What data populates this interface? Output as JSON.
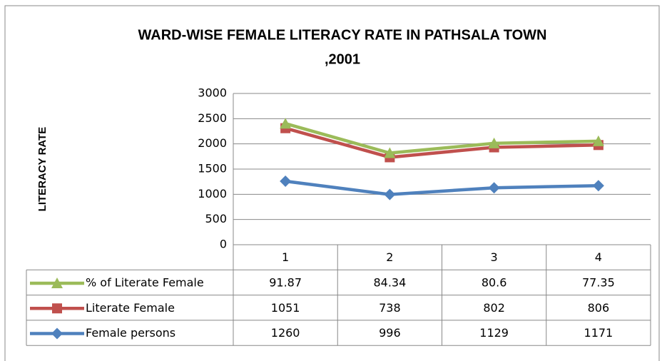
{
  "chart_data": {
    "type": "stacked_line",
    "title": [
      "WARD-WISE FEMALE LITERACY RATE IN PATHSALA TOWN",
      ",2001"
    ],
    "y_label": "LITERACY RATE",
    "categories": [
      "1",
      "2",
      "3",
      "4"
    ],
    "series": [
      {
        "name": "Female persons",
        "color": "#4f81bd",
        "marker": "diamond",
        "values": [
          1260,
          996,
          1129,
          1171
        ]
      },
      {
        "name": "Literate Female",
        "color": "#c0504d",
        "marker": "square",
        "values": [
          1051,
          738,
          802,
          806
        ]
      },
      {
        "name": "% of Literate Female",
        "color": "#9bbb59",
        "marker": "triangle",
        "values": [
          91.87,
          84.34,
          80.6,
          77.35
        ]
      }
    ],
    "ylim": [
      0,
      3000
    ],
    "yticks": [
      0,
      500,
      1000,
      1500,
      2000,
      2500,
      3000
    ],
    "grid": true,
    "data_table": true
  }
}
